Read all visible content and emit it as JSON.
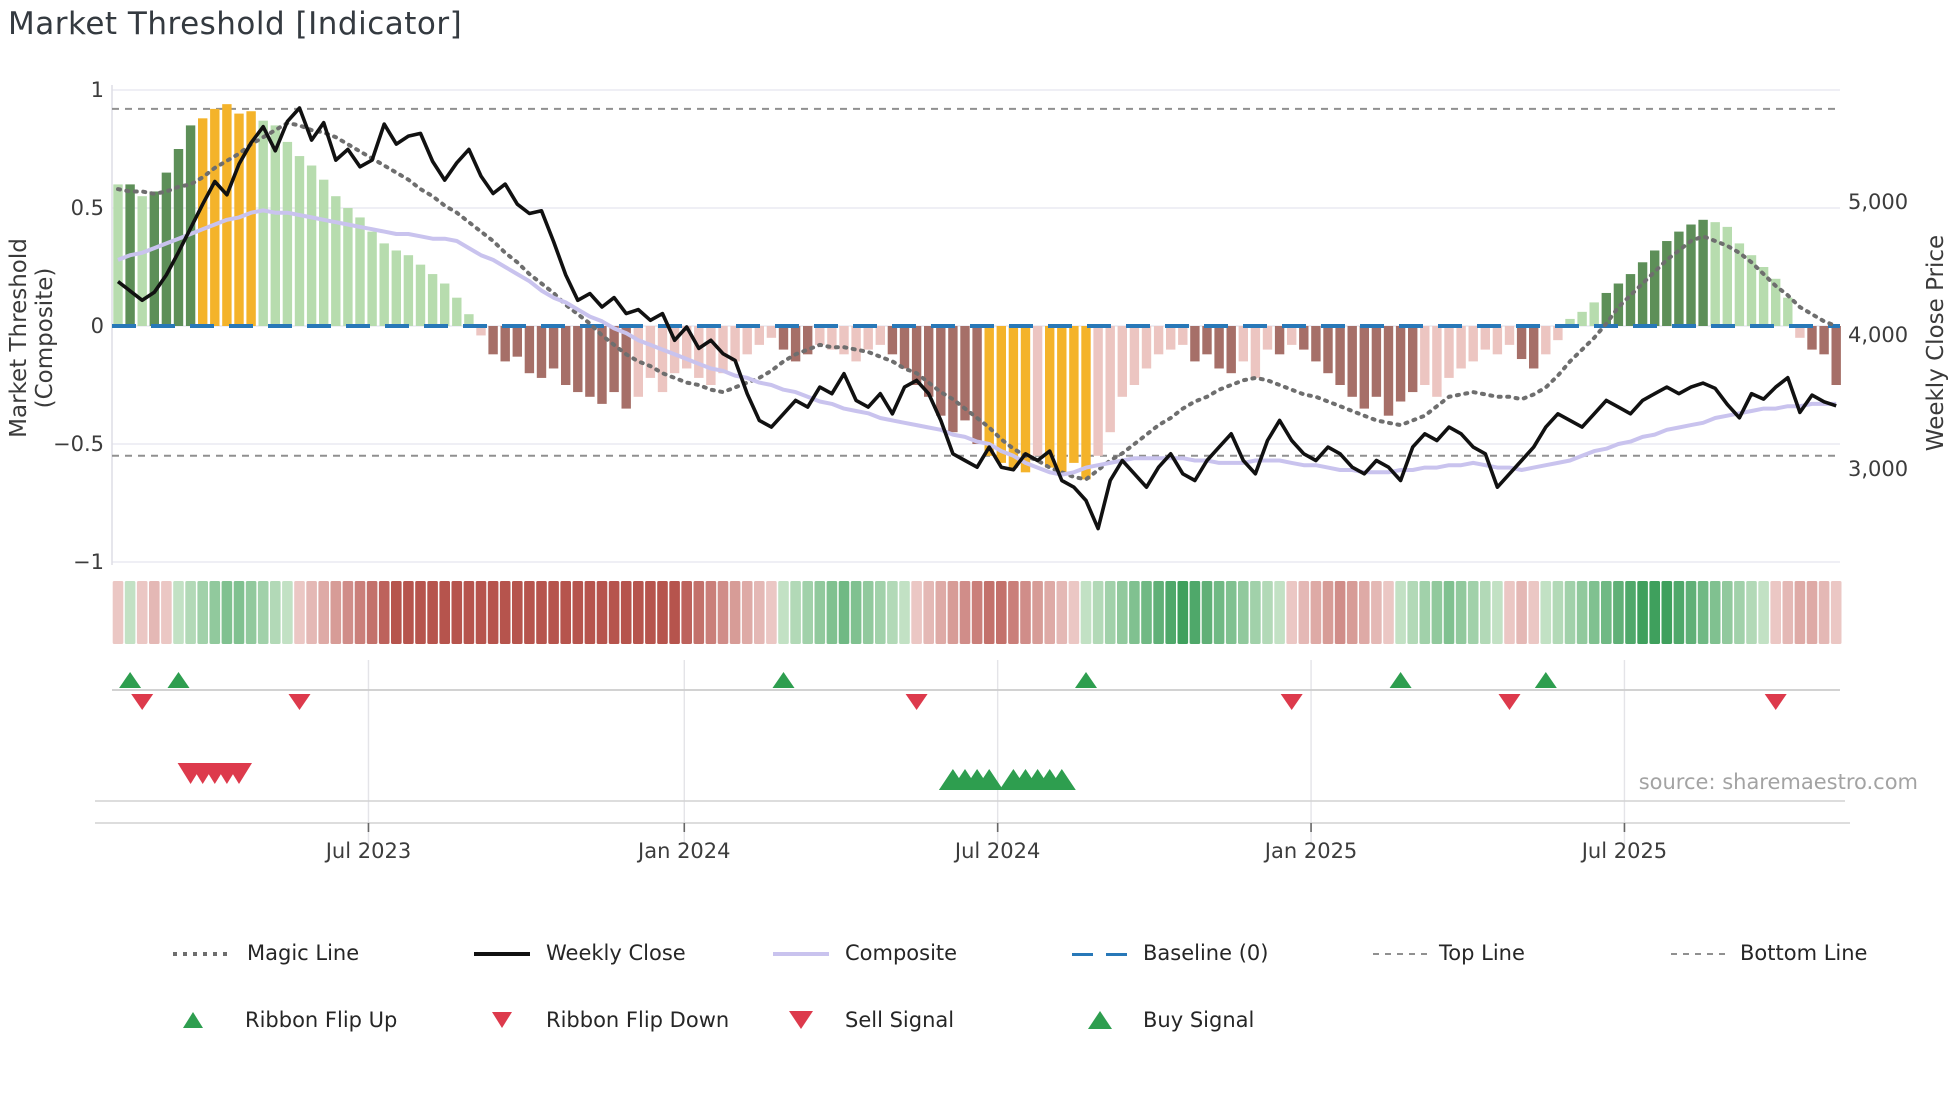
{
  "title": "Market Threshold [Indicator]",
  "source": "source: sharemaestro.com",
  "axes": {
    "y_left": {
      "label": "Market Threshold (Composite)",
      "ticks": [
        {
          "label": "1",
          "value": 1
        },
        {
          "label": "0.5",
          "value": 0.5
        },
        {
          "label": "0",
          "value": 0
        },
        {
          "label": "−0.5",
          "value": -0.5
        },
        {
          "label": "−1",
          "value": -1
        }
      ]
    },
    "y_right": {
      "label": "Weekly Close Price",
      "ticks": [
        {
          "label": "5,000",
          "value": 5000
        },
        {
          "label": "4,000",
          "value": 4000
        },
        {
          "label": "3,000",
          "value": 3000
        }
      ]
    },
    "x": {
      "ticks": [
        {
          "label": "Jul 2023",
          "week": 20.7
        },
        {
          "label": "Jan 2024",
          "week": 46.8
        },
        {
          "label": "Jul 2024",
          "week": 72.7
        },
        {
          "label": "Jan 2025",
          "week": 98.6
        },
        {
          "label": "Jul 2025",
          "week": 124.5
        }
      ]
    }
  },
  "legend": {
    "items": [
      {
        "label": "Magic Line",
        "type": "dotted-line",
        "color": "#6e6e6e"
      },
      {
        "label": "Weekly Close",
        "type": "solid-line",
        "color": "#111111"
      },
      {
        "label": "Composite",
        "type": "solid-line",
        "color": "#c9c3ee"
      },
      {
        "label": "Baseline (0)",
        "type": "dashed-line",
        "color": "#2878b8"
      },
      {
        "label": "Top Line",
        "type": "dashed-line",
        "color": "#909090"
      },
      {
        "label": "Bottom Line",
        "type": "dashed-line",
        "color": "#909090"
      },
      {
        "label": "Ribbon Flip Up",
        "type": "triangle-up",
        "color": "#2e9e4f"
      },
      {
        "label": "Ribbon Flip Down",
        "type": "triangle-down",
        "color": "#dd3a4c"
      },
      {
        "label": "Sell Signal",
        "type": "triangle-down",
        "color": "#dd3a4c"
      },
      {
        "label": "Buy Signal",
        "type": "triangle-up",
        "color": "#2e9e4f"
      }
    ]
  },
  "colors": {
    "bar_lightgreen": "#b7dcae",
    "bar_green": "#5d8f58",
    "bar_yellow": "#f4b32a",
    "bar_pink": "#ecc5c1",
    "bar_red": "#a66f68",
    "close_line": "#111111",
    "composite_line": "#c9c3ee",
    "magic_line": "#6e6e6e",
    "baseline": "#2878b8",
    "guide_line": "#909090",
    "grid": "#eaeaf2",
    "flip_up": "#2e9e4f",
    "flip_down": "#dd3a4c",
    "ribbon_green_light": "#d9edd6",
    "ribbon_green_dark": "#3fa05d",
    "ribbon_red_light": "#f4dbd9",
    "ribbon_red_dark": "#b6544d",
    "panel_line": "#cccccc"
  },
  "chart_data": {
    "type": "bar+line combo with ribbon heatmap and signal markers",
    "x_unit": "weeks (Feb 2023 - Nov 2025)",
    "n_weeks": 143,
    "ylim_left": [
      -1,
      1
    ],
    "yticks_right": [
      3000,
      4000,
      5000
    ],
    "top_line_value": 0.92,
    "bottom_line_value": -0.55,
    "baseline_value": 0,
    "bars": {
      "values": [
        0.6,
        0.6,
        0.55,
        0.57,
        0.65,
        0.75,
        0.85,
        0.88,
        0.92,
        0.94,
        0.9,
        0.91,
        0.87,
        0.85,
        0.78,
        0.72,
        0.68,
        0.62,
        0.55,
        0.5,
        0.46,
        0.4,
        0.35,
        0.32,
        0.3,
        0.26,
        0.22,
        0.18,
        0.12,
        0.05,
        -0.04,
        -0.12,
        -0.15,
        -0.13,
        -0.2,
        -0.22,
        -0.18,
        -0.25,
        -0.28,
        -0.3,
        -0.33,
        -0.28,
        -0.35,
        -0.3,
        -0.22,
        -0.28,
        -0.2,
        -0.18,
        -0.22,
        -0.25,
        -0.2,
        -0.15,
        -0.12,
        -0.08,
        -0.05,
        -0.1,
        -0.15,
        -0.12,
        -0.08,
        -0.1,
        -0.12,
        -0.15,
        -0.1,
        -0.08,
        -0.12,
        -0.18,
        -0.25,
        -0.3,
        -0.38,
        -0.45,
        -0.4,
        -0.5,
        -0.55,
        -0.58,
        -0.6,
        -0.62,
        -0.55,
        -0.6,
        -0.62,
        -0.58,
        -0.65,
        -0.55,
        -0.45,
        -0.3,
        -0.25,
        -0.18,
        -0.12,
        -0.1,
        -0.08,
        -0.15,
        -0.12,
        -0.18,
        -0.2,
        -0.15,
        -0.22,
        -0.1,
        -0.12,
        -0.08,
        -0.1,
        -0.15,
        -0.2,
        -0.25,
        -0.3,
        -0.35,
        -0.3,
        -0.38,
        -0.32,
        -0.28,
        -0.25,
        -0.3,
        -0.22,
        -0.18,
        -0.15,
        -0.1,
        -0.12,
        -0.08,
        -0.14,
        -0.18,
        -0.12,
        -0.06,
        0.03,
        0.06,
        0.1,
        0.14,
        0.18,
        0.22,
        0.27,
        0.32,
        0.36,
        0.4,
        0.43,
        0.45,
        0.44,
        0.42,
        0.35,
        0.3,
        0.25,
        0.2,
        0.12,
        -0.05,
        -0.1,
        -0.12,
        -0.25
      ],
      "colors": [
        "lg",
        "g",
        "lg",
        "g",
        "g",
        "g",
        "g",
        "y",
        "y",
        "y",
        "y",
        "y",
        "lg",
        "lg",
        "lg",
        "lg",
        "lg",
        "lg",
        "lg",
        "lg",
        "lg",
        "lg",
        "lg",
        "lg",
        "lg",
        "lg",
        "lg",
        "lg",
        "lg",
        "lg",
        "p",
        "r",
        "r",
        "r",
        "r",
        "r",
        "r",
        "r",
        "r",
        "r",
        "r",
        "r",
        "r",
        "p",
        "p",
        "p",
        "p",
        "p",
        "p",
        "p",
        "p",
        "p",
        "p",
        "p",
        "p",
        "r",
        "r",
        "r",
        "p",
        "p",
        "p",
        "p",
        "p",
        "p",
        "r",
        "r",
        "r",
        "r",
        "r",
        "r",
        "r",
        "r",
        "y",
        "y",
        "y",
        "y",
        "p",
        "y",
        "y",
        "y",
        "y",
        "p",
        "p",
        "p",
        "p",
        "p",
        "p",
        "p",
        "p",
        "r",
        "r",
        "r",
        "r",
        "p",
        "p",
        "p",
        "r",
        "p",
        "r",
        "r",
        "r",
        "r",
        "r",
        "r",
        "r",
        "r",
        "r",
        "r",
        "p",
        "p",
        "p",
        "p",
        "p",
        "p",
        "p",
        "p",
        "r",
        "r",
        "p",
        "p",
        "lg",
        "lg",
        "lg",
        "g",
        "g",
        "g",
        "g",
        "g",
        "g",
        "g",
        "g",
        "g",
        "lg",
        "lg",
        "lg",
        "lg",
        "lg",
        "lg",
        "lg",
        "p",
        "r",
        "r",
        "r"
      ]
    },
    "weekly_close": [
      4400,
      4330,
      4260,
      4320,
      4450,
      4620,
      4800,
      4980,
      5150,
      5050,
      5280,
      5440,
      5560,
      5380,
      5600,
      5700,
      5460,
      5590,
      5310,
      5390,
      5260,
      5310,
      5580,
      5430,
      5490,
      5510,
      5300,
      5160,
      5290,
      5390,
      5190,
      5060,
      5130,
      4980,
      4910,
      4930,
      4700,
      4450,
      4260,
      4310,
      4210,
      4280,
      4160,
      4190,
      4110,
      4160,
      3960,
      4060,
      3900,
      3960,
      3860,
      3810,
      3560,
      3360,
      3310,
      3410,
      3510,
      3460,
      3610,
      3560,
      3710,
      3510,
      3460,
      3560,
      3410,
      3610,
      3660,
      3560,
      3360,
      3110,
      3060,
      3010,
      3160,
      3010,
      2990,
      3110,
      3060,
      3130,
      2910,
      2860,
      2760,
      2550,
      2910,
      3060,
      2960,
      2860,
      3010,
      3110,
      2960,
      2910,
      3060,
      3160,
      3260,
      3060,
      2960,
      3210,
      3360,
      3210,
      3110,
      3060,
      3160,
      3110,
      3010,
      2960,
      3060,
      3010,
      2910,
      3160,
      3260,
      3210,
      3310,
      3260,
      3160,
      3110,
      2860,
      2960,
      3060,
      3160,
      3310,
      3410,
      3360,
      3310,
      3410,
      3510,
      3460,
      3410,
      3510,
      3560,
      3610,
      3560,
      3610,
      3640,
      3600,
      3480,
      3380,
      3560,
      3520,
      3610,
      3680,
      3420,
      3550,
      3500,
      3470
    ],
    "composite_line": [
      0.28,
      0.3,
      0.31,
      0.33,
      0.35,
      0.37,
      0.39,
      0.41,
      0.43,
      0.45,
      0.46,
      0.48,
      0.49,
      0.48,
      0.48,
      0.47,
      0.46,
      0.45,
      0.44,
      0.43,
      0.42,
      0.41,
      0.4,
      0.39,
      0.39,
      0.38,
      0.37,
      0.37,
      0.36,
      0.33,
      0.3,
      0.28,
      0.25,
      0.22,
      0.19,
      0.15,
      0.12,
      0.1,
      0.07,
      0.04,
      0.02,
      -0.01,
      -0.03,
      -0.06,
      -0.08,
      -0.1,
      -0.12,
      -0.14,
      -0.16,
      -0.18,
      -0.19,
      -0.21,
      -0.22,
      -0.24,
      -0.25,
      -0.27,
      -0.28,
      -0.3,
      -0.32,
      -0.33,
      -0.35,
      -0.36,
      -0.37,
      -0.39,
      -0.4,
      -0.41,
      -0.42,
      -0.43,
      -0.44,
      -0.46,
      -0.47,
      -0.49,
      -0.5,
      -0.53,
      -0.55,
      -0.58,
      -0.6,
      -0.62,
      -0.63,
      -0.62,
      -0.6,
      -0.59,
      -0.58,
      -0.57,
      -0.56,
      -0.56,
      -0.56,
      -0.56,
      -0.56,
      -0.57,
      -0.57,
      -0.58,
      -0.58,
      -0.58,
      -0.57,
      -0.57,
      -0.57,
      -0.58,
      -0.59,
      -0.59,
      -0.6,
      -0.61,
      -0.61,
      -0.62,
      -0.62,
      -0.62,
      -0.61,
      -0.61,
      -0.6,
      -0.6,
      -0.59,
      -0.59,
      -0.58,
      -0.59,
      -0.6,
      -0.6,
      -0.61,
      -0.6,
      -0.59,
      -0.58,
      -0.57,
      -0.55,
      -0.53,
      -0.52,
      -0.5,
      -0.49,
      -0.47,
      -0.46,
      -0.44,
      -0.43,
      -0.42,
      -0.41,
      -0.39,
      -0.38,
      -0.37,
      -0.36,
      -0.35,
      -0.35,
      -0.34,
      -0.34,
      -0.33,
      -0.33,
      -0.33
    ],
    "magic_line": [
      0.58,
      0.57,
      0.57,
      0.56,
      0.57,
      0.59,
      0.6,
      0.63,
      0.67,
      0.7,
      0.73,
      0.77,
      0.8,
      0.83,
      0.86,
      0.85,
      0.83,
      0.82,
      0.8,
      0.77,
      0.74,
      0.71,
      0.68,
      0.65,
      0.62,
      0.58,
      0.55,
      0.51,
      0.48,
      0.44,
      0.4,
      0.36,
      0.31,
      0.27,
      0.22,
      0.18,
      0.14,
      0.09,
      0.05,
      0.01,
      -0.04,
      -0.08,
      -0.12,
      -0.15,
      -0.17,
      -0.2,
      -0.22,
      -0.24,
      -0.25,
      -0.27,
      -0.28,
      -0.26,
      -0.24,
      -0.22,
      -0.19,
      -0.15,
      -0.12,
      -0.1,
      -0.08,
      -0.09,
      -0.09,
      -0.1,
      -0.11,
      -0.13,
      -0.15,
      -0.18,
      -0.2,
      -0.24,
      -0.28,
      -0.31,
      -0.35,
      -0.39,
      -0.43,
      -0.48,
      -0.52,
      -0.55,
      -0.57,
      -0.6,
      -0.62,
      -0.64,
      -0.65,
      -0.61,
      -0.57,
      -0.54,
      -0.5,
      -0.46,
      -0.42,
      -0.39,
      -0.35,
      -0.32,
      -0.3,
      -0.27,
      -0.25,
      -0.23,
      -0.22,
      -0.23,
      -0.25,
      -0.27,
      -0.29,
      -0.3,
      -0.32,
      -0.34,
      -0.36,
      -0.38,
      -0.4,
      -0.41,
      -0.42,
      -0.4,
      -0.38,
      -0.34,
      -0.3,
      -0.29,
      -0.28,
      -0.29,
      -0.3,
      -0.3,
      -0.31,
      -0.29,
      -0.26,
      -0.21,
      -0.15,
      -0.1,
      -0.05,
      0.01,
      0.08,
      0.13,
      0.18,
      0.23,
      0.28,
      0.32,
      0.36,
      0.38,
      0.36,
      0.34,
      0.31,
      0.27,
      0.22,
      0.17,
      0.13,
      0.08,
      0.05,
      0.02,
      0.0
    ],
    "ribbon_segments": [
      {
        "from": 0,
        "to": 0,
        "dir": "red"
      },
      {
        "from": 1,
        "to": 1,
        "dir": "green"
      },
      {
        "from": 2,
        "to": 4,
        "dir": "red"
      },
      {
        "from": 5,
        "to": 14,
        "dir": "green"
      },
      {
        "from": 15,
        "to": 54,
        "dir": "red"
      },
      {
        "from": 55,
        "to": 65,
        "dir": "green"
      },
      {
        "from": 66,
        "to": 79,
        "dir": "red"
      },
      {
        "from": 80,
        "to": 96,
        "dir": "green"
      },
      {
        "from": 97,
        "to": 105,
        "dir": "red"
      },
      {
        "from": 106,
        "to": 114,
        "dir": "green"
      },
      {
        "from": 115,
        "to": 117,
        "dir": "red"
      },
      {
        "from": 118,
        "to": 136,
        "dir": "green"
      },
      {
        "from": 137,
        "to": 142,
        "dir": "red"
      }
    ],
    "signals": {
      "ribbon_flip_up_weeks": [
        1,
        5,
        55,
        80,
        106,
        118
      ],
      "ribbon_flip_down_weeks": [
        2,
        15,
        66,
        97,
        115,
        137
      ],
      "sell_signal_weeks": [
        6,
        7,
        8,
        9,
        10
      ],
      "buy_signal_weeks": [
        69,
        70,
        71,
        72,
        74,
        75,
        76,
        77,
        78
      ]
    }
  }
}
